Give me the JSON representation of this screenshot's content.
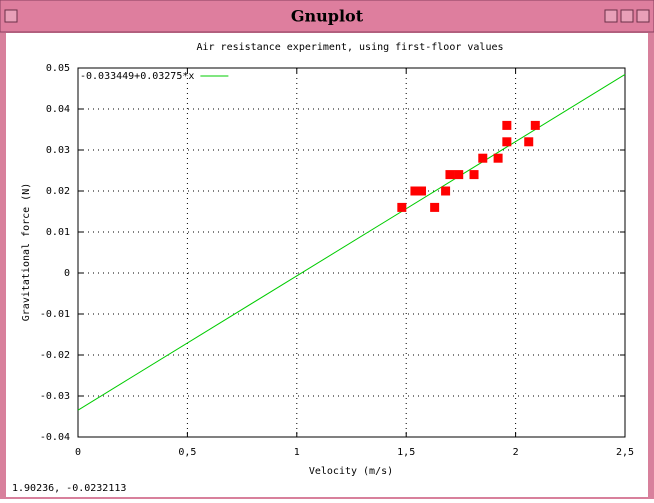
{
  "window": {
    "title": "Gnuplot"
  },
  "status": "1.90236, -0.0232113",
  "chart_data": {
    "type": "scatter",
    "title": "Air resistance experiment, using first-floor values",
    "x_label": "Velocity (m/s)",
    "y_label": "Gravitational force (N)",
    "xlim": [
      0,
      2.5
    ],
    "ylim": [
      -0.04,
      0.05
    ],
    "xticks": [
      0,
      {
        "value": 0.5,
        "label": "0,5"
      },
      1,
      {
        "value": 1.5,
        "label": "1,5"
      },
      2,
      {
        "value": 2.5,
        "label": "2,5"
      }
    ],
    "yticks": [
      -0.04,
      -0.03,
      -0.02,
      -0.01,
      0,
      0.01,
      0.02,
      0.03,
      0.04,
      0.05
    ],
    "grid": true,
    "legend": "top-left",
    "series": [
      {
        "name": "-0.033449+0.03275*x",
        "color": "#00cc00",
        "style": "line",
        "x": [
          0,
          2.5
        ],
        "values": [
          -0.033449,
          0.048426
        ]
      },
      {
        "color": "#ff0000",
        "style": "points",
        "x": [
          1.48,
          1.54,
          1.57,
          1.63,
          1.68,
          1.7,
          1.74,
          1.81,
          1.85,
          1.92,
          1.96,
          1.96,
          2.06,
          2.09
        ],
        "values": [
          0.016,
          0.02,
          0.02,
          0.016,
          0.02,
          0.024,
          0.024,
          0.024,
          0.028,
          0.028,
          0.032,
          0.036,
          0.032,
          0.036
        ]
      }
    ]
  }
}
